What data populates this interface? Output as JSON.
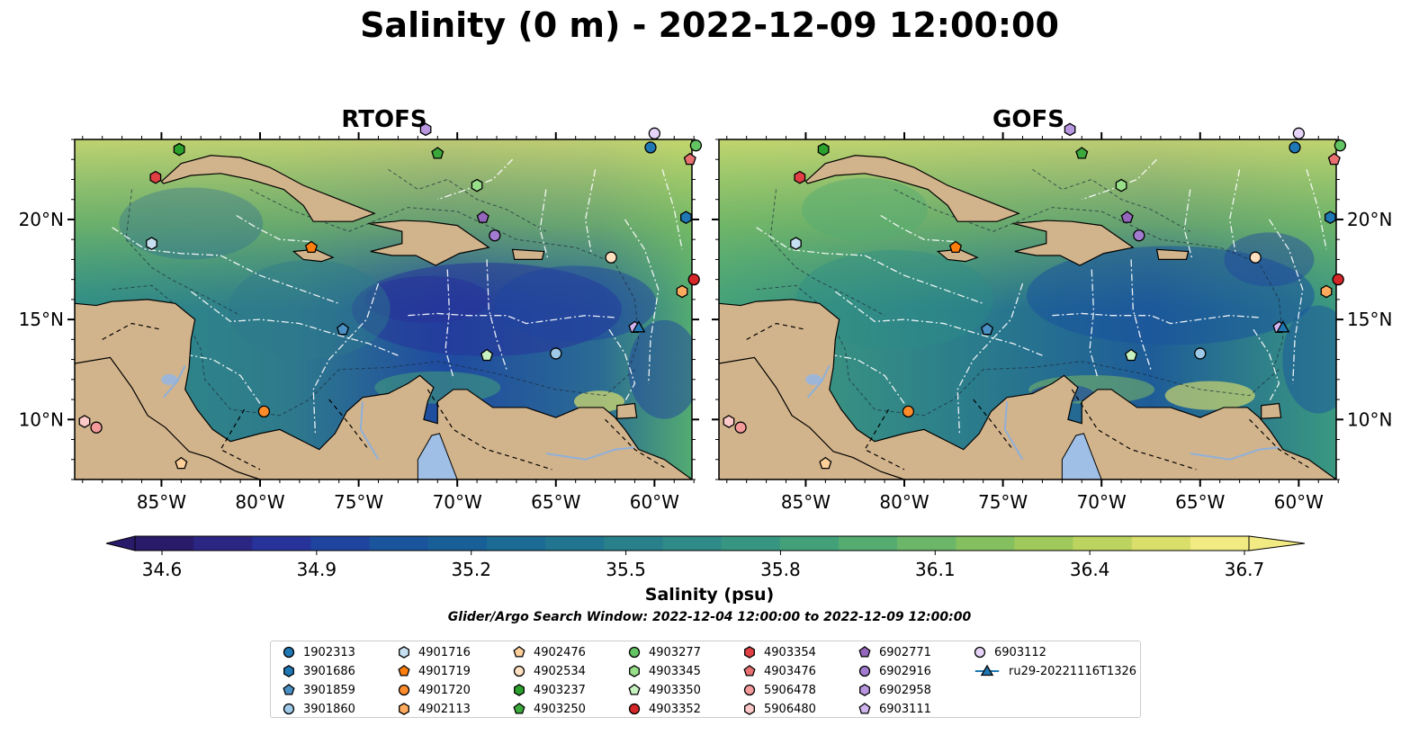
{
  "title": "Salinity (0 m) - 2022-12-09 12:00:00",
  "panels": [
    {
      "name": "RTOFS"
    },
    {
      "name": "GOFS"
    }
  ],
  "lat_labels": [
    "20°N",
    "15°N",
    "10°N"
  ],
  "lon_labels": [
    "85°W",
    "80°W",
    "75°W",
    "70°W",
    "65°W",
    "60°W"
  ],
  "colorbar": {
    "label": "Salinity (psu)",
    "ticks": [
      "34.6",
      "34.9",
      "35.2",
      "35.5",
      "35.8",
      "36.1",
      "36.4",
      "36.7"
    ],
    "colors": [
      "#2a1a6a",
      "#2b2584",
      "#27339a",
      "#1f44a0",
      "#1a549d",
      "#185f98",
      "#1b6b94",
      "#217590",
      "#28808b",
      "#2e8b87",
      "#369681",
      "#43a17a",
      "#55ac71",
      "#6bb668",
      "#84bf60",
      "#9fc95b",
      "#bdd35f",
      "#dadf6c",
      "#f2ea82"
    ]
  },
  "search_window": "Glider/Argo Search Window: 2022-12-04 12:00:00 to 2022-12-09 12:00:00",
  "legend": [
    {
      "label": "1902313",
      "marker": "circle",
      "color": "#1f77b4"
    },
    {
      "label": "3901686",
      "marker": "hexagon",
      "color": "#1f77b4"
    },
    {
      "label": "3901859",
      "marker": "pentagon",
      "color": "#4a90c4"
    },
    {
      "label": "3901860",
      "marker": "circle",
      "color": "#9ec9e8"
    },
    {
      "label": "4901716",
      "marker": "hexagon",
      "color": "#c6e0f2"
    },
    {
      "label": "4901719",
      "marker": "pentagon",
      "color": "#ff7f0e"
    },
    {
      "label": "4901720",
      "marker": "circle",
      "color": "#ff8c2a"
    },
    {
      "label": "4902113",
      "marker": "hexagon",
      "color": "#ffab5e"
    },
    {
      "label": "4902476",
      "marker": "pentagon",
      "color": "#ffcf99"
    },
    {
      "label": "4902534",
      "marker": "circle",
      "color": "#ffe0c0"
    },
    {
      "label": "4903237",
      "marker": "hexagon",
      "color": "#2ca02c"
    },
    {
      "label": "4903250",
      "marker": "pentagon",
      "color": "#3aa83a"
    },
    {
      "label": "4903277",
      "marker": "circle",
      "color": "#62c462"
    },
    {
      "label": "4903345",
      "marker": "hexagon",
      "color": "#98df8a"
    },
    {
      "label": "4903350",
      "marker": "pentagon",
      "color": "#c8f2c0"
    },
    {
      "label": "4903352",
      "marker": "circle",
      "color": "#d62728"
    },
    {
      "label": "4903354",
      "marker": "hexagon",
      "color": "#e04044"
    },
    {
      "label": "4903476",
      "marker": "pentagon",
      "color": "#e87070"
    },
    {
      "label": "5906478",
      "marker": "circle",
      "color": "#f49a9a"
    },
    {
      "label": "5906480",
      "marker": "hexagon",
      "color": "#fcc8c8"
    },
    {
      "label": "6902771",
      "marker": "pentagon",
      "color": "#9467bd"
    },
    {
      "label": "6902916",
      "marker": "circle",
      "color": "#a37bd0"
    },
    {
      "label": "6902958",
      "marker": "hexagon",
      "color": "#b896e0"
    },
    {
      "label": "6903111",
      "marker": "pentagon",
      "color": "#d0b4ee"
    },
    {
      "label": "6903112",
      "marker": "circle",
      "color": "#e6d4f8"
    },
    {
      "label": "ru29-20221116T1326",
      "marker": "triangle-line",
      "color": "#1f77b4"
    }
  ],
  "observations": [
    {
      "id": "1902313",
      "lon": -60.2,
      "lat": 23.6
    },
    {
      "id": "3901686",
      "lon": -58.4,
      "lat": 20.1
    },
    {
      "id": "3901859",
      "lon": -75.8,
      "lat": 14.5
    },
    {
      "id": "3901860",
      "lon": -65.0,
      "lat": 13.3
    },
    {
      "id": "4901716",
      "lon": -85.5,
      "lat": 18.8
    },
    {
      "id": "4901719",
      "lon": -77.4,
      "lat": 18.6
    },
    {
      "id": "4901720",
      "lon": -79.8,
      "lat": 10.4
    },
    {
      "id": "4902113",
      "lon": -58.6,
      "lat": 16.4
    },
    {
      "id": "4902476",
      "lon": -84.0,
      "lat": 7.8
    },
    {
      "id": "4902534",
      "lon": -62.2,
      "lat": 18.1
    },
    {
      "id": "4903237",
      "lon": -84.1,
      "lat": 23.5
    },
    {
      "id": "4903250",
      "lon": -71.0,
      "lat": 23.3
    },
    {
      "id": "4903277",
      "lon": -57.9,
      "lat": 23.7
    },
    {
      "id": "4903345",
      "lon": -69.0,
      "lat": 21.7
    },
    {
      "id": "4903350",
      "lon": -68.5,
      "lat": 13.2
    },
    {
      "id": "4903352",
      "lon": -58.0,
      "lat": 17.0
    },
    {
      "id": "4903354",
      "lon": -85.3,
      "lat": 22.1
    },
    {
      "id": "4903476",
      "lon": -58.2,
      "lat": 23.0
    },
    {
      "id": "5906478",
      "lon": -88.3,
      "lat": 9.6
    },
    {
      "id": "5906480",
      "lon": -88.9,
      "lat": 9.9
    },
    {
      "id": "6902771",
      "lon": -68.7,
      "lat": 20.1
    },
    {
      "id": "6902916",
      "lon": -68.1,
      "lat": 19.2
    },
    {
      "id": "6902958",
      "lon": -71.6,
      "lat": 24.5
    },
    {
      "id": "6903111",
      "lon": -61.0,
      "lat": 14.6
    },
    {
      "id": "6903112",
      "lon": -60.0,
      "lat": 24.3
    },
    {
      "id": "ru29-20221116T1326",
      "lon": -60.8,
      "lat": 14.6
    }
  ]
}
